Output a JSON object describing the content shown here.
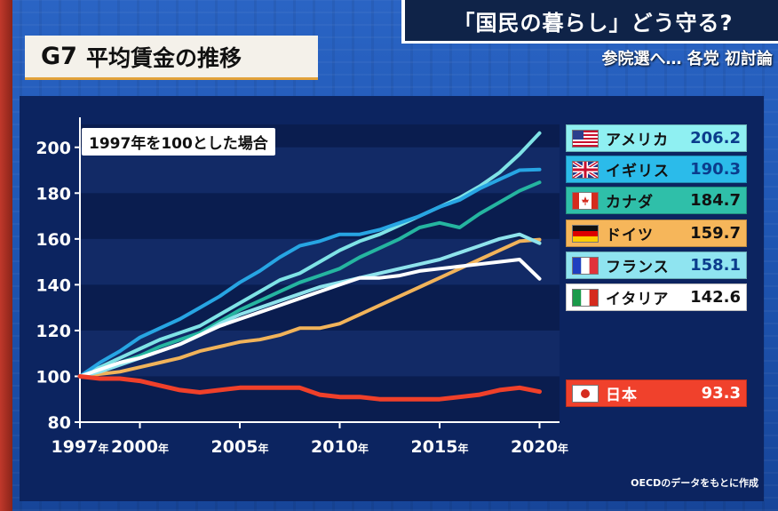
{
  "headline": "「国民の暮らし」どう守る?",
  "subheadline": "参院選へ… 各党 初討論",
  "title": {
    "g7": "G7",
    "rest": "平均賃金の推移"
  },
  "note": "1997年を100とした場合",
  "source": "OECDのデータをもとに作成",
  "chart_data": {
    "type": "line",
    "xlabel": "",
    "ylabel": "",
    "xlim": [
      1997,
      2021
    ],
    "ylim": [
      80,
      210
    ],
    "x_ticks": [
      {
        "value": 1997,
        "label": "1997年"
      },
      {
        "value": 2000,
        "label": "2000年"
      },
      {
        "value": 2005,
        "label": "2005年"
      },
      {
        "value": 2010,
        "label": "2010年"
      },
      {
        "value": 2015,
        "label": "2015年"
      },
      {
        "value": 2020,
        "label": "2020年"
      }
    ],
    "y_ticks": [
      80,
      100,
      120,
      140,
      160,
      180,
      200
    ],
    "x": [
      1997,
      1998,
      1999,
      2000,
      2001,
      2002,
      2003,
      2004,
      2005,
      2006,
      2007,
      2008,
      2009,
      2010,
      2011,
      2012,
      2013,
      2014,
      2015,
      2016,
      2017,
      2018,
      2019,
      2020
    ],
    "series": [
      {
        "name": "アメリカ",
        "value_label": "206.2",
        "color": "#7fe3e6",
        "flag": "us",
        "values": [
          100,
          104,
          108,
          112,
          116,
          119,
          122,
          127,
          132,
          137,
          142,
          145,
          150,
          155,
          159,
          162,
          166,
          170,
          174,
          178,
          183,
          189,
          197,
          206.2
        ]
      },
      {
        "name": "イギリス",
        "value_label": "190.3",
        "color": "#27a5e3",
        "flag": "uk",
        "values": [
          100,
          106,
          111,
          117,
          121,
          125,
          130,
          135,
          141,
          146,
          152,
          157,
          159,
          162,
          162,
          164,
          167,
          170,
          174,
          177,
          182,
          186,
          190,
          190.3
        ]
      },
      {
        "name": "カナダ",
        "value_label": "184.7",
        "color": "#25b5a0",
        "flag": "ca",
        "values": [
          100,
          103,
          106,
          109,
          113,
          116,
          119,
          124,
          129,
          133,
          137,
          141,
          144,
          147,
          152,
          156,
          160,
          165,
          167,
          165,
          171,
          176,
          181,
          184.7
        ]
      },
      {
        "name": "ドイツ",
        "value_label": "159.7",
        "color": "#f1b35a",
        "flag": "de",
        "values": [
          100,
          101,
          102,
          104,
          106,
          108,
          111,
          113,
          115,
          116,
          118,
          121,
          121,
          123,
          127,
          131,
          135,
          139,
          143,
          147,
          151,
          155,
          159,
          159.7
        ]
      },
      {
        "name": "フランス",
        "value_label": "158.1",
        "color": "#8ee3ec",
        "flag": "fr",
        "values": [
          100,
          102,
          105,
          108,
          111,
          114,
          118,
          123,
          127,
          130,
          133,
          136,
          139,
          141,
          143,
          145,
          147,
          149,
          151,
          154,
          157,
          160,
          162,
          158.1
        ]
      },
      {
        "name": "イタリア",
        "value_label": "142.6",
        "color": "#ffffff",
        "flag": "it",
        "values": [
          100,
          103,
          106,
          108,
          111,
          114,
          118,
          122,
          125,
          128,
          131,
          134,
          137,
          140,
          143,
          143,
          144,
          146,
          147,
          148,
          149,
          150,
          151,
          142.6
        ]
      },
      {
        "name": "日本",
        "value_label": "93.3",
        "color": "#f0402a",
        "flag": "jp",
        "values": [
          100,
          99,
          99,
          98,
          96,
          94,
          93,
          94,
          95,
          95,
          95,
          95,
          92,
          91,
          91,
          90,
          90,
          90,
          90,
          91,
          92,
          94,
          95,
          93.3
        ]
      }
    ]
  },
  "legend_styles": [
    {
      "bg": "#8ff0f2"
    },
    {
      "bg": "#2bbbea"
    },
    {
      "bg": "#2fbfa9"
    },
    {
      "bg": "#f6b65a"
    },
    {
      "bg": "#8fe4f0"
    },
    {
      "bg": "#ffffff"
    },
    {
      "bg": "#f0412c"
    }
  ]
}
